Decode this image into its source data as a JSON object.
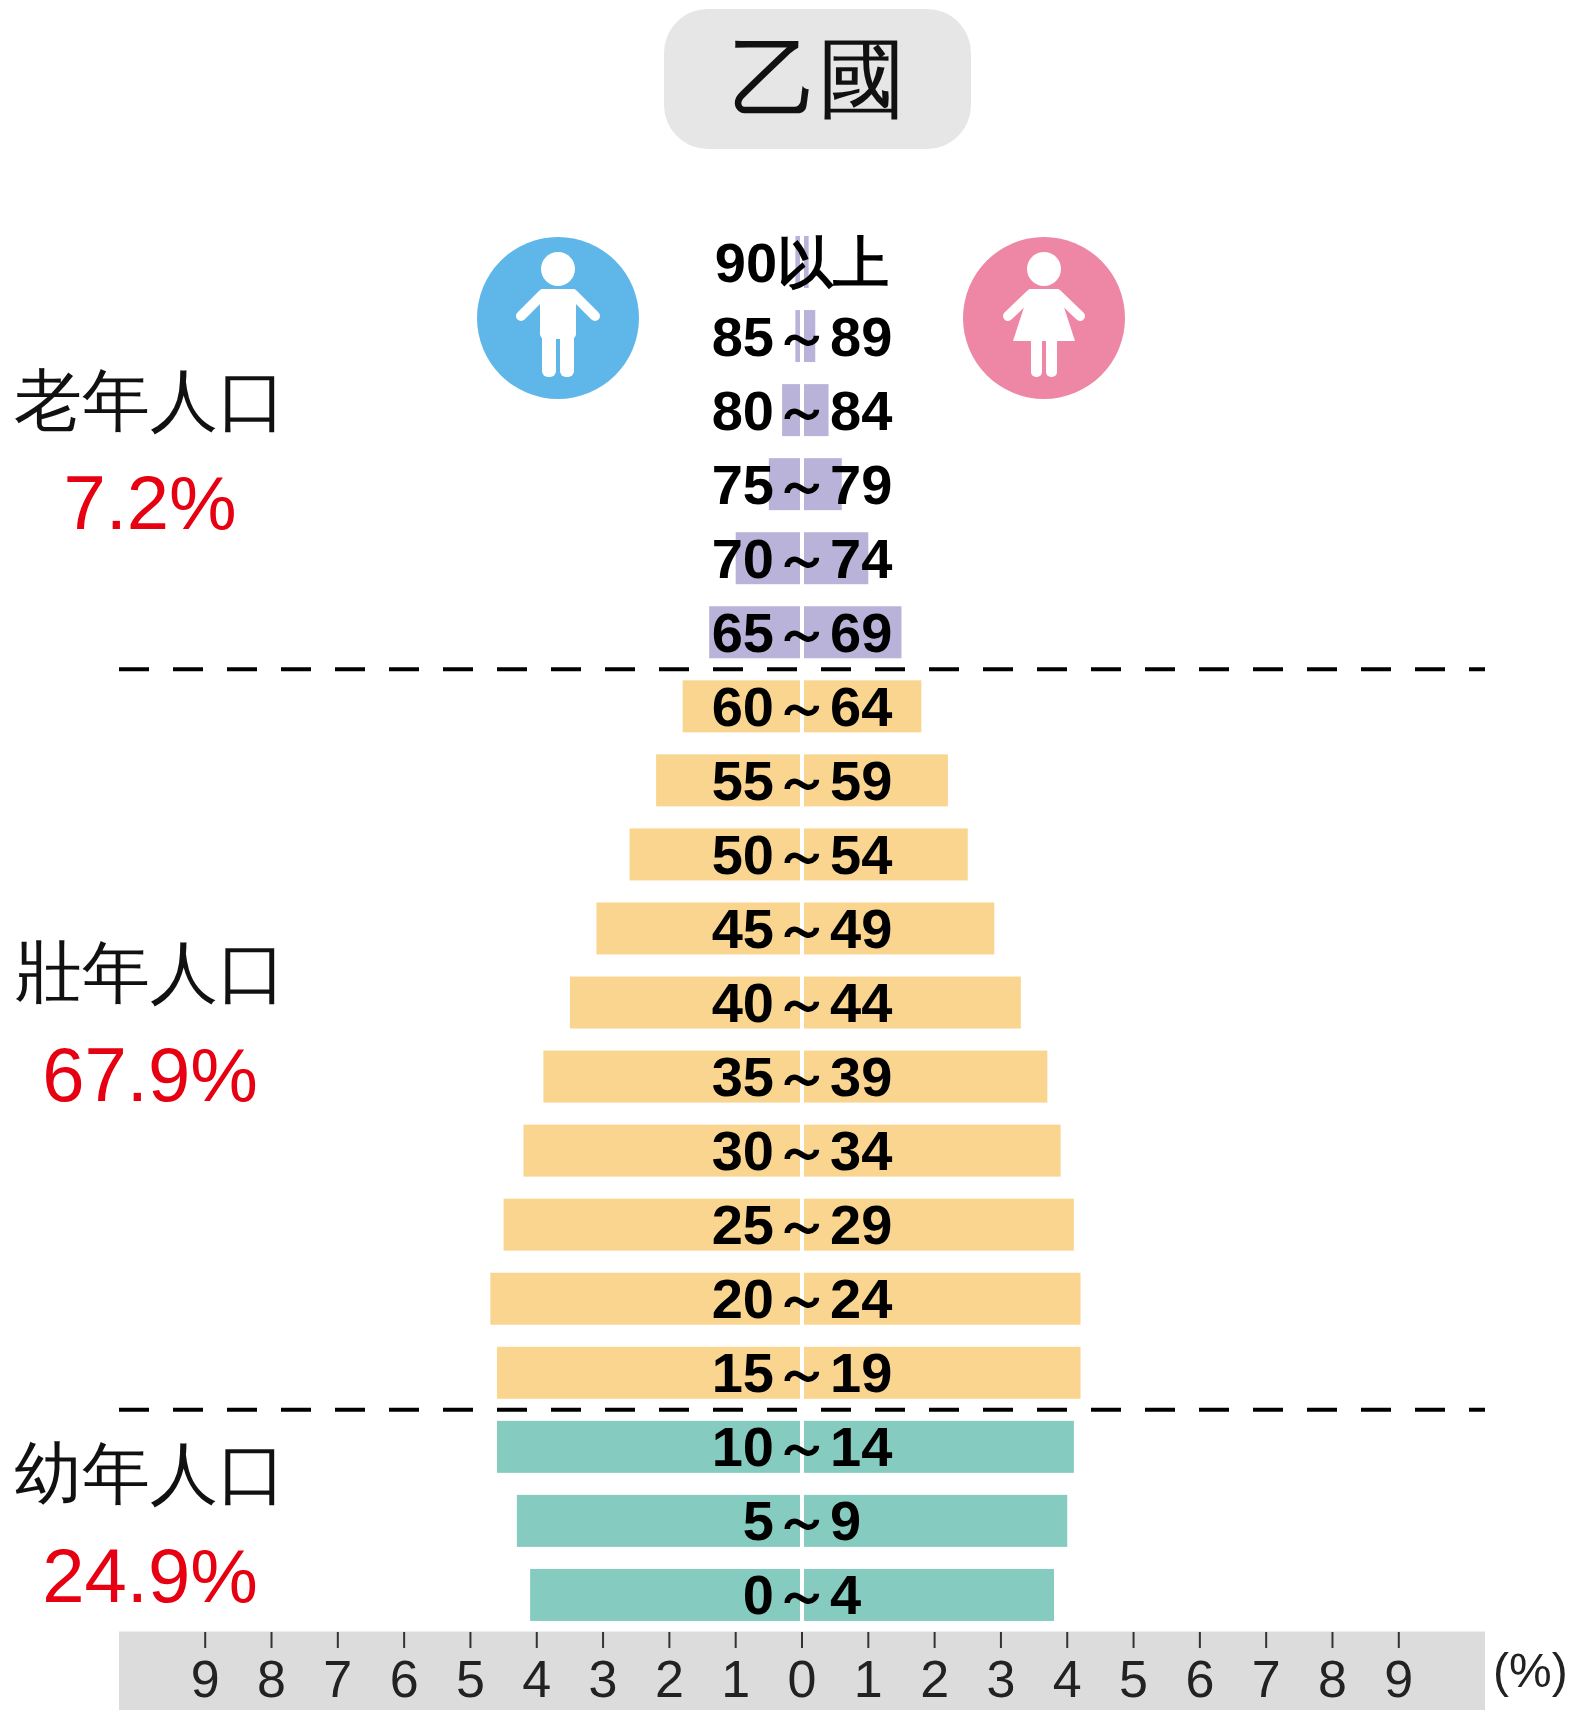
{
  "chart_data": {
    "type": "bar",
    "orientation": "horizontal",
    "stacked": true,
    "title": "乙國",
    "xlabel": "(%)",
    "categories": [
      "90以上",
      "85～89",
      "80～84",
      "75～79",
      "70～74",
      "65～69",
      "60～64",
      "55～59",
      "50～54",
      "45～49",
      "40～44",
      "35～39",
      "30～34",
      "25～29",
      "20～24",
      "15～19",
      "10～14",
      "5～9",
      "0～4"
    ],
    "series": [
      {
        "values": [
          -0.1,
          -0.1,
          -0.3,
          -0.5,
          -1.0,
          -1.4,
          -1.8,
          -2.2,
          -2.6,
          -3.1,
          -3.5,
          -3.9,
          -4.2,
          -4.5,
          -4.7,
          -4.6,
          -4.6,
          -4.3,
          -4.1
        ],
        "colors": [
          "#bab3d9",
          "#bab3d9",
          "#bab3d9",
          "#bab3d9",
          "#bab3d9",
          "#bab3d9",
          "#fad590",
          "#fad590",
          "#fad590",
          "#fad590",
          "#fad590",
          "#fad590",
          "#fad590",
          "#fad590",
          "#fad590",
          "#fad590",
          "#86cbbf",
          "#86cbbf",
          "#86cbbf"
        ]
      },
      {
        "values": [
          0.1,
          0.2,
          0.4,
          0.6,
          1.0,
          1.5,
          1.8,
          2.2,
          2.5,
          2.9,
          3.3,
          3.7,
          3.9,
          4.1,
          4.2,
          4.2,
          4.1,
          4.0,
          3.8
        ],
        "colors": [
          "#bab3d9",
          "#bab3d9",
          "#bab3d9",
          "#bab3d9",
          "#bab3d9",
          "#bab3d9",
          "#fad590",
          "#fad590",
          "#fad590",
          "#fad590",
          "#fad590",
          "#fad590",
          "#fad590",
          "#fad590",
          "#fad590",
          "#fad590",
          "#86cbbf",
          "#86cbbf",
          "#86cbbf"
        ]
      }
    ],
    "xlim": [
      -10.3,
      10.3
    ],
    "xticks": [
      {
        "value": -9,
        "label": "9"
      },
      {
        "value": -8,
        "label": "8"
      },
      {
        "value": -7,
        "label": "7"
      },
      {
        "value": -6,
        "label": "6"
      },
      {
        "value": -5,
        "label": "5"
      },
      {
        "value": -4,
        "label": "4"
      },
      {
        "value": -3,
        "label": "3"
      },
      {
        "value": -2,
        "label": "2"
      },
      {
        "value": -1,
        "label": "1"
      },
      0,
      1,
      2,
      3,
      4,
      5,
      6,
      7,
      8,
      9
    ],
    "ref_lines": [
      {
        "axis": "y",
        "value": "65～69",
        "line_style": "dashed",
        "color": "#000000"
      },
      {
        "axis": "y",
        "value": "15～19",
        "line_style": "dashed",
        "color": "#000000"
      }
    ],
    "annotations": [
      "老年人口",
      "7.2%",
      "壯年人口",
      "67.9%",
      "幼年人口",
      "24.9%"
    ]
  }
}
